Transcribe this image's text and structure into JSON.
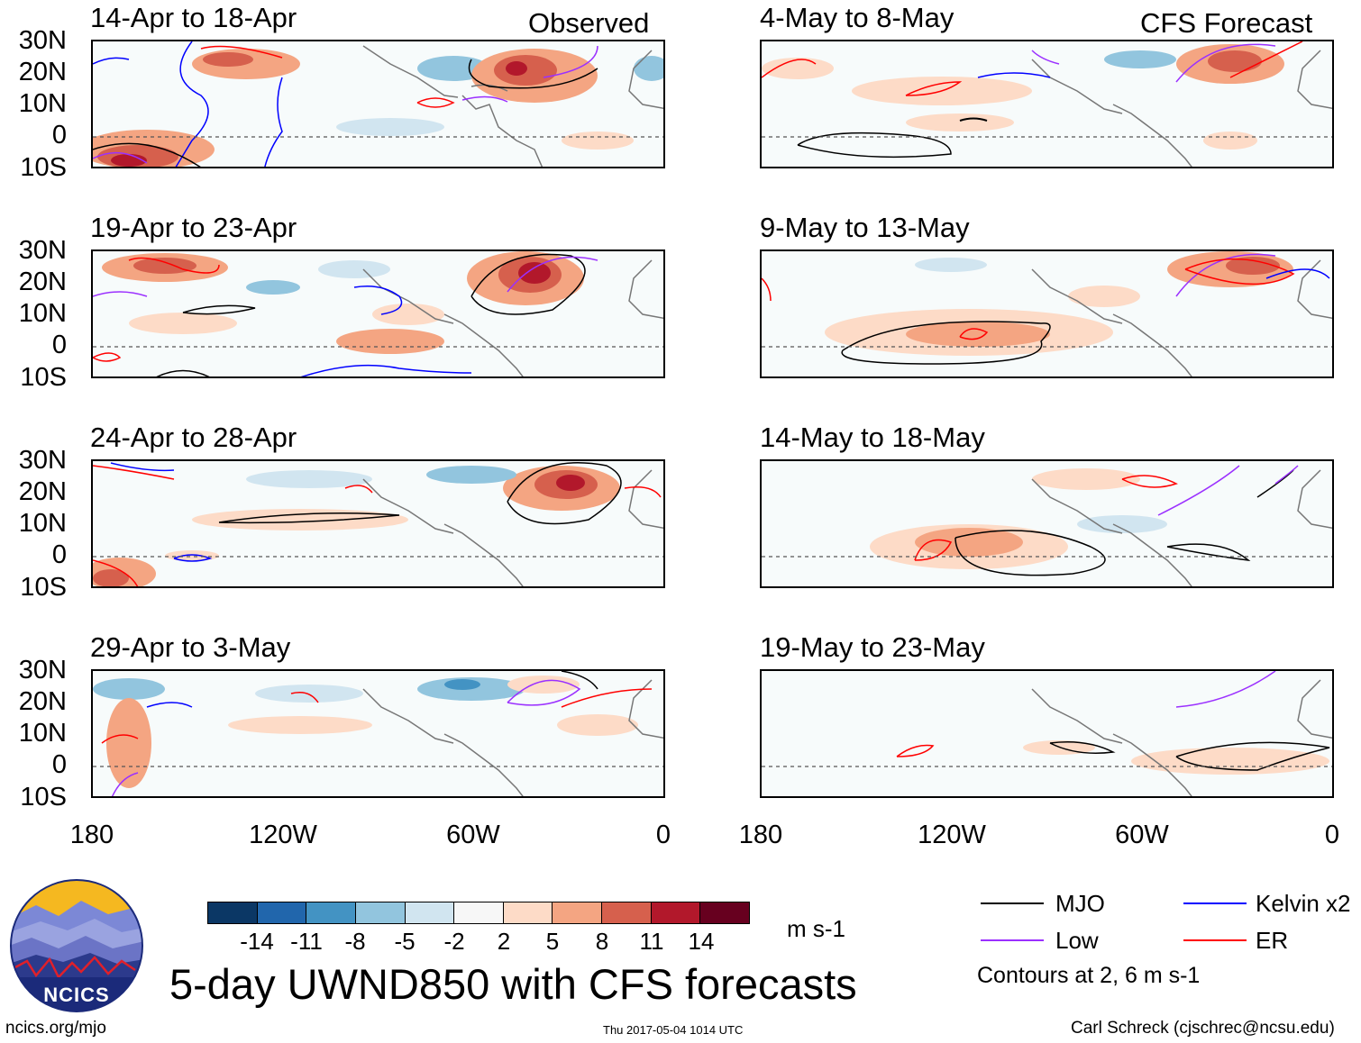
{
  "figure": {
    "title": "5-day UWND850 with CFS forecasts",
    "left_tag": "Observed",
    "right_tag": "CFS Forecast"
  },
  "panels": {
    "left": [
      {
        "title": "14-Apr to 18-Apr"
      },
      {
        "title": "19-Apr to 23-Apr"
      },
      {
        "title": "24-Apr to 28-Apr"
      },
      {
        "title": "29-Apr to 3-May"
      }
    ],
    "right": [
      {
        "title": "4-May to 8-May"
      },
      {
        "title": "9-May to 13-May"
      },
      {
        "title": "14-May to 18-May"
      },
      {
        "title": "19-May to 23-May"
      }
    ]
  },
  "axes": {
    "lat_labels": [
      "30N",
      "20N",
      "10N",
      "0",
      "10S"
    ],
    "lon_labels": [
      "180",
      "120W",
      "60W",
      "0"
    ]
  },
  "colorbar": {
    "ticks": [
      "-14",
      "-11",
      "-8",
      "-5",
      "-2",
      "2",
      "5",
      "8",
      "11",
      "14"
    ],
    "units": "m s-1",
    "colors": [
      "#0b3765",
      "#2166ac",
      "#4393c3",
      "#92c5de",
      "#d1e5f0",
      "#f7f7f7",
      "#fddbc7",
      "#f4a582",
      "#d6604d",
      "#b2182b",
      "#67001f"
    ]
  },
  "legend": {
    "items": [
      {
        "label": "MJO",
        "color": "#000000"
      },
      {
        "label": "Kelvin x2",
        "color": "#0000ff"
      },
      {
        "label": "Low",
        "color": "#9b30ff"
      },
      {
        "label": "ER",
        "color": "#ff0000"
      }
    ],
    "note": "Contours at 2, 6 m s-1"
  },
  "logo": {
    "text": "NCICS"
  },
  "footer": {
    "url": "ncics.org/mjo",
    "timestamp": "Thu 2017-05-04 1014 UTC",
    "credit": "Carl Schreck (cjschrec@ncsu.edu)"
  }
}
